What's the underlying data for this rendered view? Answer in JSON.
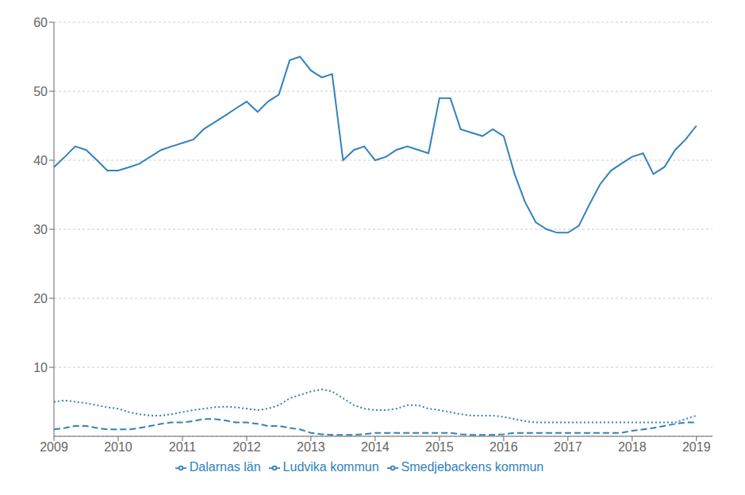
{
  "chart_data": {
    "type": "line",
    "x": [
      2009.0,
      2009.17,
      2009.33,
      2009.5,
      2009.67,
      2009.83,
      2010.0,
      2010.17,
      2010.33,
      2010.5,
      2010.67,
      2010.83,
      2011.0,
      2011.17,
      2011.33,
      2011.5,
      2011.67,
      2011.83,
      2012.0,
      2012.17,
      2012.33,
      2012.5,
      2012.67,
      2012.83,
      2013.0,
      2013.17,
      2013.33,
      2013.5,
      2013.67,
      2013.83,
      2014.0,
      2014.17,
      2014.33,
      2014.5,
      2014.67,
      2014.83,
      2015.0,
      2015.17,
      2015.33,
      2015.5,
      2015.67,
      2015.83,
      2016.0,
      2016.17,
      2016.33,
      2016.5,
      2016.67,
      2016.83,
      2017.0,
      2017.17,
      2017.33,
      2017.5,
      2017.67,
      2017.83,
      2018.0,
      2018.17,
      2018.33,
      2018.5,
      2018.67,
      2018.83,
      2019.0
    ],
    "series": [
      {
        "name": "Dalarnas län",
        "line_style": "solid",
        "values": [
          39.0,
          40.5,
          42.0,
          41.5,
          40.0,
          38.5,
          38.5,
          39.0,
          39.5,
          40.5,
          41.5,
          42.0,
          42.5,
          43.0,
          44.5,
          45.5,
          46.5,
          47.5,
          48.5,
          47.0,
          48.5,
          49.5,
          54.5,
          55.0,
          53.0,
          52.0,
          52.5,
          40.0,
          41.5,
          42.0,
          40.0,
          40.5,
          41.5,
          42.0,
          41.5,
          41.0,
          49.0,
          49.0,
          44.5,
          44.0,
          43.5,
          44.5,
          43.5,
          38.0,
          34.0,
          31.0,
          30.0,
          29.5,
          29.5,
          30.5,
          33.5,
          36.5,
          38.5,
          39.5,
          40.5,
          41.0,
          38.0,
          39.0,
          41.5,
          43.0,
          45.0
        ]
      },
      {
        "name": "Ludvika kommun",
        "line_style": "dotted",
        "values": [
          5.0,
          5.2,
          5.0,
          4.8,
          4.5,
          4.2,
          4.0,
          3.5,
          3.2,
          3.0,
          3.0,
          3.2,
          3.5,
          3.8,
          4.0,
          4.2,
          4.3,
          4.2,
          4.0,
          3.8,
          4.0,
          4.5,
          5.5,
          6.0,
          6.5,
          6.8,
          6.5,
          5.5,
          4.5,
          4.0,
          3.8,
          3.8,
          4.0,
          4.5,
          4.5,
          4.0,
          3.8,
          3.5,
          3.2,
          3.0,
          3.0,
          3.0,
          2.8,
          2.5,
          2.2,
          2.0,
          2.0,
          2.0,
          2.0,
          2.0,
          2.0,
          2.0,
          2.0,
          2.0,
          2.0,
          2.0,
          2.0,
          2.0,
          2.0,
          2.5,
          3.0
        ]
      },
      {
        "name": "Smedjebackens kommun",
        "line_style": "dashed",
        "values": [
          1.0,
          1.2,
          1.5,
          1.5,
          1.2,
          1.0,
          1.0,
          1.0,
          1.2,
          1.5,
          1.8,
          2.0,
          2.0,
          2.2,
          2.5,
          2.5,
          2.3,
          2.0,
          2.0,
          1.8,
          1.5,
          1.5,
          1.2,
          1.0,
          0.5,
          0.3,
          0.2,
          0.2,
          0.2,
          0.3,
          0.5,
          0.5,
          0.5,
          0.5,
          0.5,
          0.5,
          0.5,
          0.5,
          0.3,
          0.2,
          0.2,
          0.2,
          0.3,
          0.5,
          0.5,
          0.5,
          0.5,
          0.5,
          0.5,
          0.5,
          0.5,
          0.5,
          0.5,
          0.5,
          0.8,
          1.0,
          1.2,
          1.5,
          1.8,
          2.0,
          2.0
        ]
      }
    ],
    "xlim": [
      2009.0,
      2019.25
    ],
    "xticks": [
      2009,
      2010,
      2011,
      2012,
      2013,
      2014,
      2015,
      2016,
      2017,
      2018,
      2019
    ],
    "ylim": [
      0,
      60
    ],
    "yticks": [
      10,
      20,
      30,
      40,
      50,
      60
    ],
    "grid": true,
    "legend": "bottom"
  }
}
